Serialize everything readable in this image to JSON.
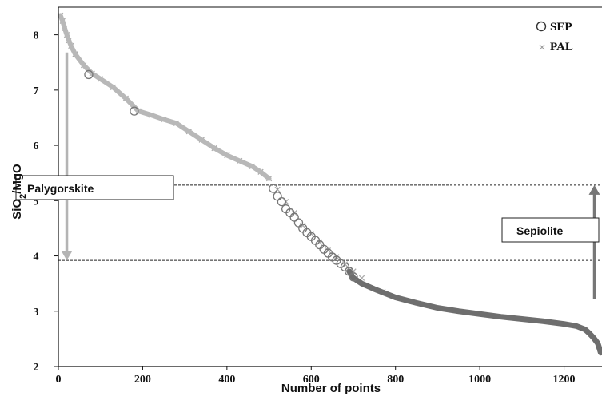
{
  "chart_data": {
    "type": "scatter",
    "title": "",
    "xlabel": "Number of points",
    "ylabel_main": "SiO",
    "ylabel_sub": "2",
    "ylabel_rest": "/MgO",
    "xlim": [
      0,
      1290
    ],
    "ylim": [
      2,
      8.5
    ],
    "x_ticks": [
      0,
      200,
      400,
      600,
      800,
      1000,
      1200
    ],
    "y_ticks": [
      2,
      3,
      4,
      5,
      6,
      7,
      8
    ],
    "grid": false,
    "legend_position": "top-right",
    "series": [
      {
        "name": "SEP",
        "marker": "circle",
        "color": "#777777",
        "points": [
          [
            72,
            7.28
          ],
          [
            180,
            6.62
          ],
          [
            510,
            5.22
          ],
          [
            520,
            5.08
          ],
          [
            530,
            4.98
          ],
          [
            540,
            4.85
          ],
          [
            550,
            4.78
          ],
          [
            560,
            4.7
          ],
          [
            570,
            4.6
          ],
          [
            580,
            4.5
          ],
          [
            590,
            4.42
          ],
          [
            600,
            4.35
          ],
          [
            610,
            4.28
          ],
          [
            620,
            4.2
          ],
          [
            630,
            4.12
          ],
          [
            640,
            4.05
          ],
          [
            650,
            3.98
          ],
          [
            660,
            3.92
          ],
          [
            670,
            3.86
          ],
          [
            680,
            3.8
          ],
          [
            690,
            3.72
          ],
          [
            700,
            3.62
          ]
        ],
        "curve": [
          [
            690,
            3.72
          ],
          [
            700,
            3.6
          ],
          [
            720,
            3.5
          ],
          [
            750,
            3.4
          ],
          [
            800,
            3.25
          ],
          [
            850,
            3.15
          ],
          [
            900,
            3.06
          ],
          [
            950,
            3.0
          ],
          [
            1000,
            2.95
          ],
          [
            1050,
            2.9
          ],
          [
            1100,
            2.86
          ],
          [
            1150,
            2.82
          ],
          [
            1200,
            2.77
          ],
          [
            1230,
            2.73
          ],
          [
            1250,
            2.67
          ],
          [
            1260,
            2.6
          ],
          [
            1270,
            2.52
          ],
          [
            1280,
            2.42
          ],
          [
            1287,
            2.25
          ]
        ]
      },
      {
        "name": "PAL",
        "marker": "x",
        "color": "#aaaaaa",
        "points": [
          [
            5,
            8.35
          ],
          [
            10,
            8.25
          ],
          [
            15,
            8.12
          ],
          [
            20,
            8.0
          ],
          [
            25,
            7.9
          ],
          [
            30,
            7.8
          ],
          [
            40,
            7.65
          ],
          [
            60,
            7.45
          ],
          [
            80,
            7.3
          ],
          [
            100,
            7.2
          ],
          [
            130,
            7.05
          ],
          [
            160,
            6.85
          ],
          [
            190,
            6.62
          ],
          [
            220,
            6.55
          ],
          [
            250,
            6.47
          ],
          [
            280,
            6.4
          ],
          [
            310,
            6.25
          ],
          [
            340,
            6.1
          ],
          [
            370,
            5.95
          ],
          [
            400,
            5.82
          ],
          [
            430,
            5.72
          ],
          [
            460,
            5.62
          ],
          [
            480,
            5.52
          ],
          [
            500,
            5.4
          ],
          [
            520,
            5.2
          ],
          [
            540,
            4.98
          ],
          [
            560,
            4.78
          ],
          [
            580,
            4.55
          ],
          [
            600,
            4.4
          ],
          [
            620,
            4.25
          ],
          [
            640,
            4.1
          ],
          [
            660,
            3.98
          ],
          [
            680,
            3.85
          ],
          [
            700,
            3.72
          ],
          [
            720,
            3.6
          ],
          [
            770,
            3.35
          ]
        ]
      }
    ],
    "hlines": [
      5.28,
      3.92
    ],
    "annotations": [
      {
        "text": "Palygorskite",
        "y_range": [
          7.68,
          3.92
        ],
        "arrow_x": 20
      },
      {
        "text": "Sepiolite",
        "y_range": [
          3.22,
          5.28
        ],
        "arrow_x": 1272
      }
    ],
    "colors": {
      "axis": "#111111",
      "light_arrow": "#b4b4b4",
      "dark_arrow": "#777777"
    }
  }
}
